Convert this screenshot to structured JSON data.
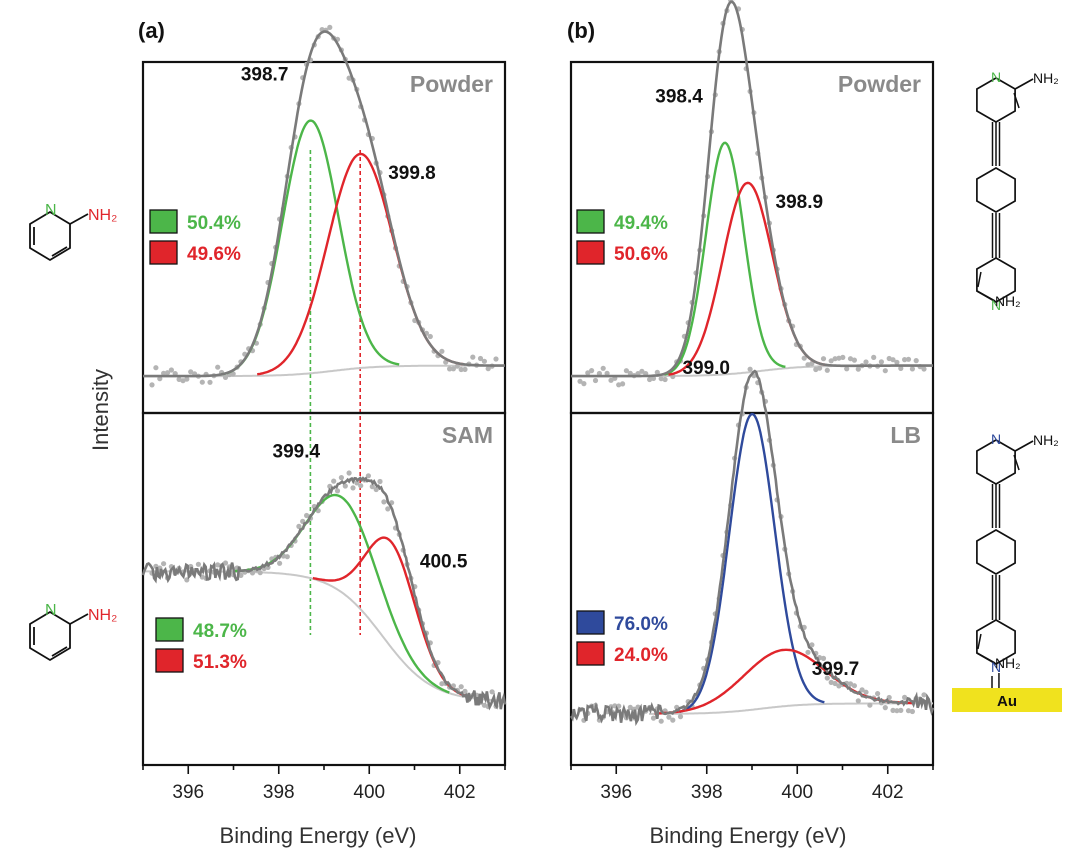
{
  "figure": {
    "panel_a_label": "(a)",
    "panel_b_label": "(b)",
    "y_axis_title": "Intensity",
    "x_axis_title": "Binding Energy (eV)",
    "colors": {
      "green": "#4cb649",
      "red": "#e0252b",
      "blue": "#2f4a9c",
      "envelope": "#7a7a7a",
      "background": "#c8c8c8",
      "dots": "#b4b4b4",
      "gold": "#f0e21e"
    },
    "molecules": {
      "small_label_N": "N",
      "small_label_NH2": "NH₂",
      "large_label_N": "N",
      "large_label_NH2": "NH₂",
      "substrate": "Au"
    }
  },
  "chart_data": [
    {
      "type": "line",
      "panel": "(a)",
      "sample": "Powder",
      "xlim": [
        395,
        403
      ],
      "ticks": [
        396,
        398,
        400,
        402
      ],
      "tick_labels": [
        "396",
        "398",
        "400",
        "402"
      ],
      "peaks": [
        {
          "center": 398.7,
          "label": "398.7",
          "color": "green",
          "percent": "50.4%",
          "height": 0.72,
          "sigma": 0.62
        },
        {
          "center": 399.8,
          "label": "399.8",
          "color": "red",
          "percent": "49.6%",
          "height": 0.61,
          "sigma": 0.72
        }
      ],
      "reference_lines": [
        398.7,
        399.8
      ]
    },
    {
      "type": "line",
      "panel": "(a)",
      "sample": "SAM",
      "xlim": [
        395,
        403
      ],
      "ticks": [
        396,
        398,
        400,
        402
      ],
      "tick_labels": [
        "396",
        "398",
        "400",
        "402"
      ],
      "peaks": [
        {
          "center": 399.4,
          "label": "399.4",
          "color": "green",
          "percent": "48.7%",
          "height": 0.27,
          "sigma": 0.75
        },
        {
          "center": 400.5,
          "label": "400.5",
          "color": "red",
          "percent": "51.3%",
          "height": 0.3,
          "sigma": 0.55
        }
      ],
      "reference_lines": [
        398.7,
        399.8
      ]
    },
    {
      "type": "line",
      "panel": "(b)",
      "sample": "Powder",
      "xlim": [
        395,
        403
      ],
      "ticks": [
        396,
        398,
        400,
        402
      ],
      "tick_labels": [
        "396",
        "398",
        "400",
        "402"
      ],
      "peaks": [
        {
          "center": 398.4,
          "label": "398.4",
          "color": "green",
          "percent": "49.4%",
          "height": 0.66,
          "sigma": 0.42
        },
        {
          "center": 398.9,
          "label": "398.9",
          "color": "red",
          "percent": "50.6%",
          "height": 0.54,
          "sigma": 0.55
        }
      ]
    },
    {
      "type": "line",
      "panel": "(b)",
      "sample": "LB",
      "xlim": [
        395,
        403
      ],
      "ticks": [
        396,
        398,
        400,
        402
      ],
      "tick_labels": [
        "396",
        "398",
        "400",
        "402"
      ],
      "peaks": [
        {
          "center": 399.0,
          "label": "399.0",
          "color": "blue",
          "percent": "76.0%",
          "height": 0.84,
          "sigma": 0.5
        },
        {
          "center": 399.7,
          "label": "399.7",
          "color": "red",
          "percent": "24.0%",
          "height": 0.16,
          "sigma": 0.9
        }
      ]
    }
  ]
}
